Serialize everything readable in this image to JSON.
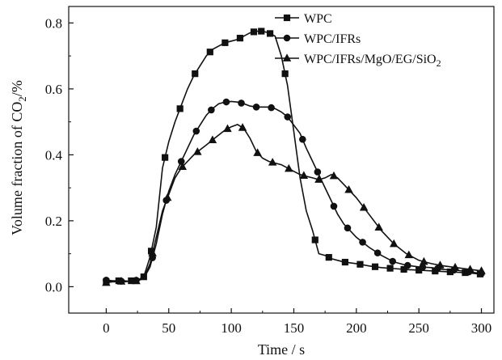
{
  "chart_data": {
    "type": "line",
    "title": "",
    "xlabel": "Time / s",
    "ylabel": "Volume fraction of CO2/%",
    "ylabel_parts": {
      "pre": "Volume fraction of CO",
      "sub": "2",
      "post": "/%"
    },
    "xlim": [
      -30,
      310
    ],
    "ylim": [
      -0.08,
      0.85
    ],
    "xticks": [
      0,
      50,
      100,
      150,
      200,
      250,
      300
    ],
    "yticks": [
      0.0,
      0.2,
      0.4,
      0.6,
      0.8
    ],
    "xtick_labels": [
      "0",
      "50",
      "100",
      "150",
      "200",
      "250",
      "300"
    ],
    "ytick_labels": [
      "0.0",
      "0.2",
      "0.4",
      "0.6",
      "0.8"
    ],
    "grid": false,
    "legend_position": "top-right",
    "series": [
      {
        "name": "WPC",
        "legend_label": {
          "text": "WPC"
        },
        "marker": "square",
        "x": [
          0,
          5,
          10,
          15,
          20,
          25,
          30,
          35,
          40,
          45,
          50,
          55,
          60,
          65,
          70,
          75,
          80,
          85,
          90,
          95,
          100,
          105,
          110,
          115,
          120,
          125,
          130,
          135,
          140,
          145,
          150,
          155,
          160,
          165,
          170,
          175,
          180,
          185,
          190,
          200,
          210,
          220,
          230,
          240,
          250,
          260,
          270,
          280,
          290,
          300
        ],
        "y": [
          0.015,
          0.015,
          0.018,
          0.015,
          0.018,
          0.02,
          0.03,
          0.09,
          0.18,
          0.36,
          0.44,
          0.5,
          0.55,
          0.6,
          0.64,
          0.67,
          0.7,
          0.72,
          0.73,
          0.74,
          0.745,
          0.75,
          0.76,
          0.77,
          0.775,
          0.775,
          0.77,
          0.76,
          0.7,
          0.61,
          0.47,
          0.33,
          0.23,
          0.17,
          0.1,
          0.095,
          0.085,
          0.08,
          0.075,
          0.07,
          0.063,
          0.058,
          0.055,
          0.052,
          0.05,
          0.048,
          0.046,
          0.044,
          0.042,
          0.038
        ],
        "marked_x": [
          0,
          10,
          20,
          30,
          36,
          47,
          59,
          71,
          83,
          95,
          107,
          118,
          124,
          131,
          143,
          167,
          178,
          191,
          203,
          215,
          227,
          238,
          250,
          263,
          275,
          287,
          299
        ]
      },
      {
        "name": "WPC/IFRs",
        "legend_label": {
          "text": "WPC/IFRs"
        },
        "marker": "circle",
        "x": [
          0,
          5,
          10,
          15,
          20,
          25,
          30,
          35,
          40,
          45,
          50,
          55,
          60,
          65,
          70,
          75,
          80,
          85,
          90,
          95,
          100,
          105,
          110,
          115,
          120,
          125,
          130,
          135,
          140,
          145,
          150,
          155,
          160,
          165,
          170,
          175,
          180,
          185,
          190,
          195,
          200,
          210,
          220,
          230,
          240,
          250,
          260,
          270,
          280,
          290,
          300
        ],
        "y": [
          0.02,
          0.018,
          0.018,
          0.015,
          0.018,
          0.02,
          0.025,
          0.06,
          0.13,
          0.22,
          0.29,
          0.34,
          0.38,
          0.42,
          0.46,
          0.49,
          0.52,
          0.54,
          0.555,
          0.56,
          0.562,
          0.56,
          0.555,
          0.548,
          0.545,
          0.545,
          0.545,
          0.54,
          0.53,
          0.515,
          0.49,
          0.465,
          0.42,
          0.38,
          0.34,
          0.3,
          0.26,
          0.22,
          0.19,
          0.17,
          0.15,
          0.12,
          0.095,
          0.075,
          0.065,
          0.06,
          0.058,
          0.052,
          0.05,
          0.045,
          0.04
        ],
        "marked_x": [
          0,
          12,
          24,
          37,
          48,
          60,
          72,
          84,
          96,
          108,
          120,
          132,
          145,
          157,
          169,
          182,
          193,
          205,
          217,
          229,
          241,
          253,
          265,
          278,
          290,
          300
        ]
      },
      {
        "name": "WPC/IFRs/MgO/EG/SiO2",
        "legend_label": {
          "pre": "WPC/IFRs/MgO/EG/SiO",
          "sub": "2"
        },
        "marker": "triangle",
        "x": [
          0,
          5,
          10,
          15,
          20,
          25,
          30,
          35,
          40,
          45,
          50,
          55,
          60,
          65,
          70,
          75,
          80,
          85,
          90,
          95,
          100,
          105,
          110,
          115,
          120,
          125,
          130,
          135,
          140,
          145,
          150,
          155,
          160,
          165,
          170,
          175,
          180,
          185,
          190,
          200,
          210,
          220,
          230,
          240,
          250,
          260,
          270,
          280,
          290,
          300
        ],
        "y": [
          0.012,
          0.015,
          0.015,
          0.018,
          0.015,
          0.018,
          0.025,
          0.07,
          0.15,
          0.23,
          0.28,
          0.33,
          0.36,
          0.38,
          0.4,
          0.415,
          0.43,
          0.445,
          0.46,
          0.475,
          0.485,
          0.492,
          0.48,
          0.45,
          0.41,
          0.39,
          0.38,
          0.375,
          0.37,
          0.36,
          0.35,
          0.34,
          0.335,
          0.33,
          0.325,
          0.33,
          0.34,
          0.33,
          0.31,
          0.27,
          0.22,
          0.17,
          0.13,
          0.1,
          0.08,
          0.07,
          0.063,
          0.058,
          0.053,
          0.048
        ],
        "marked_x": [
          0,
          12,
          24,
          37,
          49,
          61,
          73,
          85,
          97,
          109,
          121,
          133,
          146,
          158,
          170,
          182,
          194,
          206,
          218,
          230,
          242,
          254,
          267,
          279,
          291,
          300
        ]
      }
    ]
  }
}
